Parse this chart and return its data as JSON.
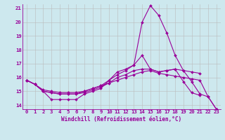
{
  "x": [
    0,
    1,
    2,
    3,
    4,
    5,
    6,
    7,
    8,
    9,
    10,
    11,
    12,
    13,
    14,
    15,
    16,
    17,
    18,
    19,
    20,
    21,
    22,
    23
  ],
  "line1": [
    15.8,
    15.5,
    15.0,
    14.4,
    14.4,
    14.4,
    14.4,
    14.8,
    15.0,
    15.2,
    15.8,
    16.4,
    16.6,
    16.9,
    17.6,
    16.6,
    16.4,
    16.5,
    16.6,
    15.7,
    14.9,
    14.7,
    null,
    null
  ],
  "line2": [
    15.8,
    15.5,
    15.0,
    14.9,
    14.8,
    14.8,
    14.8,
    14.9,
    15.1,
    15.3,
    15.6,
    16.0,
    16.2,
    16.5,
    16.6,
    16.6,
    16.4,
    16.5,
    16.6,
    16.5,
    16.4,
    16.3,
    null,
    null
  ],
  "line3": [
    15.8,
    15.5,
    15.0,
    14.9,
    14.8,
    14.8,
    14.8,
    15.0,
    15.2,
    15.4,
    15.8,
    16.2,
    16.5,
    16.9,
    20.0,
    21.2,
    20.5,
    19.2,
    17.6,
    16.5,
    15.7,
    14.8,
    14.6,
    13.7
  ],
  "line4": [
    15.8,
    15.5,
    15.1,
    15.0,
    14.9,
    14.9,
    14.9,
    15.0,
    15.2,
    15.4,
    15.6,
    15.8,
    16.0,
    16.2,
    16.4,
    16.5,
    16.3,
    16.2,
    16.1,
    16.0,
    15.9,
    15.8,
    14.6,
    13.7
  ],
  "background_color": "#cde8ee",
  "line_color": "#990099",
  "grid_color": "#bbbbbb",
  "xlabel": "Windchill (Refroidissement éolien,°C)",
  "xlim": [
    -0.5,
    23.5
  ],
  "ylim": [
    13.7,
    21.3
  ],
  "yticks": [
    14,
    15,
    16,
    17,
    18,
    19,
    20,
    21
  ],
  "xticks": [
    0,
    1,
    2,
    3,
    4,
    5,
    6,
    7,
    8,
    9,
    10,
    11,
    12,
    13,
    14,
    15,
    16,
    17,
    18,
    19,
    20,
    21,
    22,
    23
  ],
  "marker": "D",
  "markersize": 2.0,
  "linewidth": 0.8,
  "tick_fontsize": 5.2,
  "xlabel_fontsize": 5.5
}
